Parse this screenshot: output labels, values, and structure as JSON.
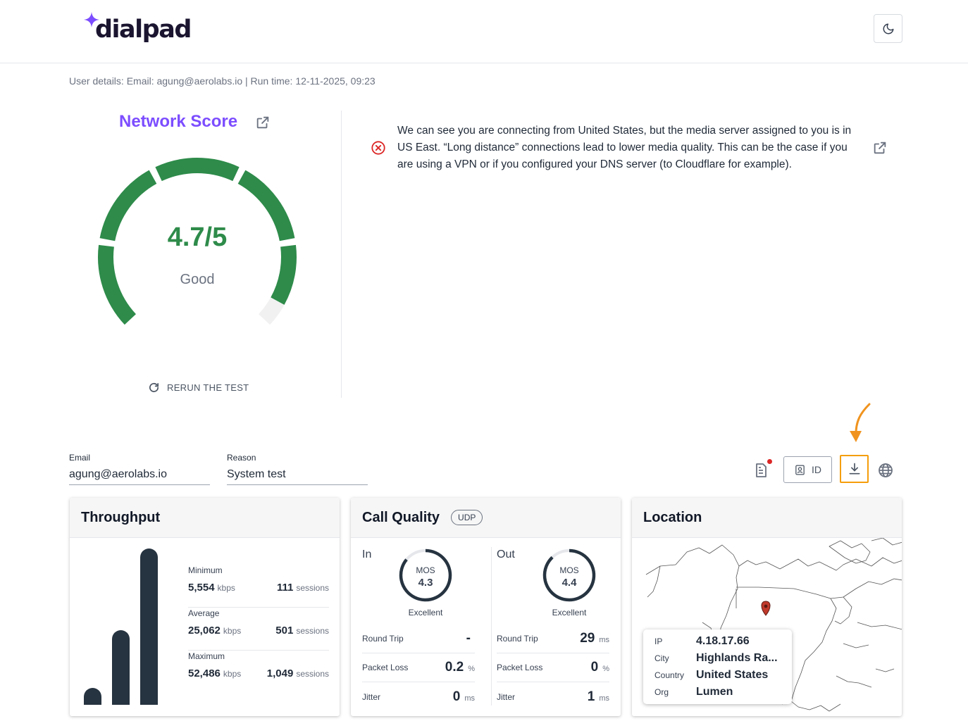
{
  "brand": {
    "name": "dialpad",
    "accent": "#7c4dff"
  },
  "header": {
    "theme_icon": "moon-icon"
  },
  "user_details": "User details: Email: agung@aerolabs.io | Run time: 12-11-2025, 09:23",
  "score": {
    "title": "Network Score",
    "value": "4.7/5",
    "label": "Good",
    "fraction": 0.94,
    "color": "#2e8b4a",
    "rerun_label": "RERUN THE TEST"
  },
  "alert": {
    "text": "We can see you are connecting from United States, but the media server assigned to you is in US East. “Long distance” connections lead to lower media quality. This can be the case if you are using a VPN or if you configured your DNS server (to Cloudflare for example).",
    "icon": "error-circle-icon",
    "color": "#dc2626"
  },
  "form": {
    "email": {
      "label": "Email",
      "value": "agung@aerolabs.io"
    },
    "reason": {
      "label": "Reason",
      "value": "System test"
    }
  },
  "toolbar": {
    "id_label": "ID",
    "highlight_color": "#f59e0b"
  },
  "throughput": {
    "title": "Throughput",
    "bars": [
      5554,
      25062,
      52486
    ],
    "stats": [
      {
        "label": "Minimum",
        "value": "5,554",
        "unit": "kbps",
        "sessions": "111",
        "sessions_unit": "sessions"
      },
      {
        "label": "Average",
        "value": "25,062",
        "unit": "kbps",
        "sessions": "501",
        "sessions_unit": "sessions"
      },
      {
        "label": "Maximum",
        "value": "52,486",
        "unit": "kbps",
        "sessions": "1,049",
        "sessions_unit": "sessions"
      }
    ]
  },
  "call_quality": {
    "title": "Call Quality",
    "badge": "UDP",
    "in": {
      "label": "In",
      "mos_label": "MOS",
      "mos": "4.3",
      "mos_fraction": 0.86,
      "grade": "Excellent",
      "metrics": [
        {
          "label": "Round Trip",
          "value": "-",
          "unit": ""
        },
        {
          "label": "Packet Loss",
          "value": "0.2",
          "unit": "%"
        },
        {
          "label": "Jitter",
          "value": "0",
          "unit": "ms"
        }
      ]
    },
    "out": {
      "label": "Out",
      "mos_label": "MOS",
      "mos": "4.4",
      "mos_fraction": 0.88,
      "grade": "Excellent",
      "metrics": [
        {
          "label": "Round Trip",
          "value": "29",
          "unit": "ms"
        },
        {
          "label": "Packet Loss",
          "value": "0",
          "unit": "%"
        },
        {
          "label": "Jitter",
          "value": "1",
          "unit": "ms"
        }
      ]
    }
  },
  "location": {
    "title": "Location",
    "rows": [
      {
        "key": "IP",
        "value": "4.18.17.66"
      },
      {
        "key": "City",
        "value": "Highlands Ra..."
      },
      {
        "key": "Country",
        "value": "United States"
      },
      {
        "key": "Org",
        "value": "Lumen"
      }
    ],
    "pin_color": "#c0392b"
  }
}
